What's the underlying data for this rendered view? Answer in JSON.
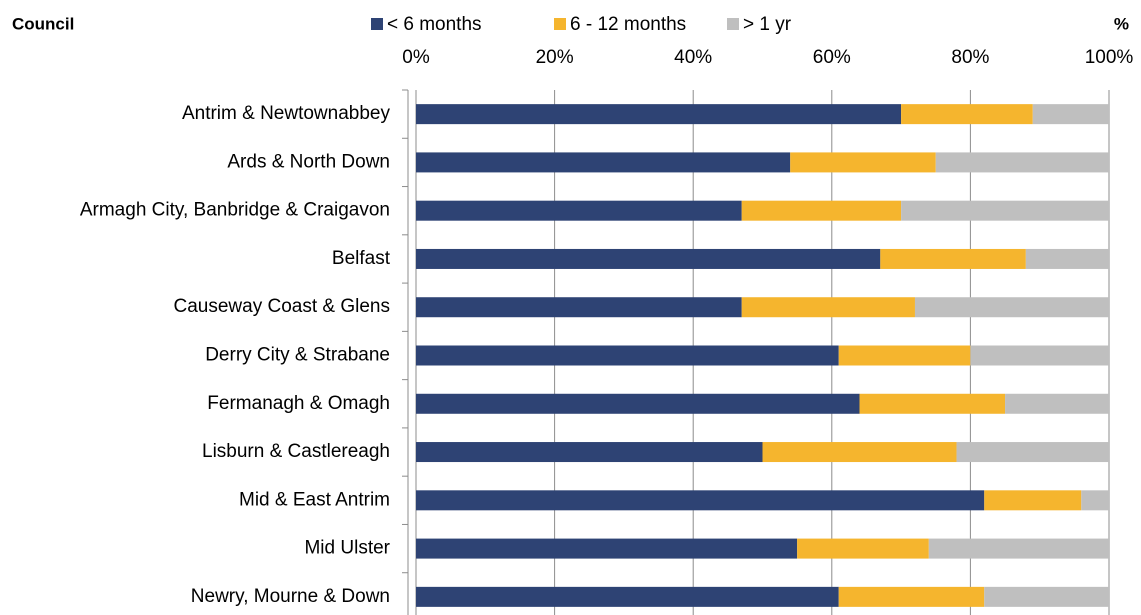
{
  "chart_data": {
    "type": "stacked_bar_horizontal",
    "y_label": "Council",
    "x_label": "%",
    "categories": [
      "Antrim & Newtownabbey",
      "Ards & North Down",
      "Armagh City, Banbridge & Craigavon",
      "Belfast",
      "Causeway Coast & Glens",
      "Derry City & Strabane",
      "Fermanagh & Omagh",
      "Lisburn & Castlereagh",
      "Mid & East Antrim",
      "Mid Ulster",
      "Newry, Mourne & Down"
    ],
    "series": [
      {
        "name": "< 6 months",
        "color": "#2e4374",
        "values": [
          70,
          54,
          47,
          67,
          47,
          61,
          64,
          50,
          82,
          55,
          61
        ]
      },
      {
        "name": "6 - 12 months",
        "color": "#f5b52e",
        "values": [
          19,
          21,
          23,
          21,
          25,
          19,
          21,
          28,
          14,
          19,
          21
        ]
      },
      {
        "name": "> 1 yr",
        "color": "#bfbfbf",
        "values": [
          11,
          25,
          30,
          12,
          28,
          20,
          15,
          22,
          4,
          26,
          18
        ]
      }
    ],
    "xlim": [
      0,
      100
    ],
    "xticks": [
      {
        "value": 0,
        "label": "0%"
      },
      {
        "value": 20,
        "label": "20%"
      },
      {
        "value": 40,
        "label": "40%"
      },
      {
        "value": 60,
        "label": "60%"
      },
      {
        "value": 80,
        "label": "80%"
      },
      {
        "value": 100,
        "label": "100%"
      }
    ],
    "grid": true,
    "legend": "top"
  }
}
